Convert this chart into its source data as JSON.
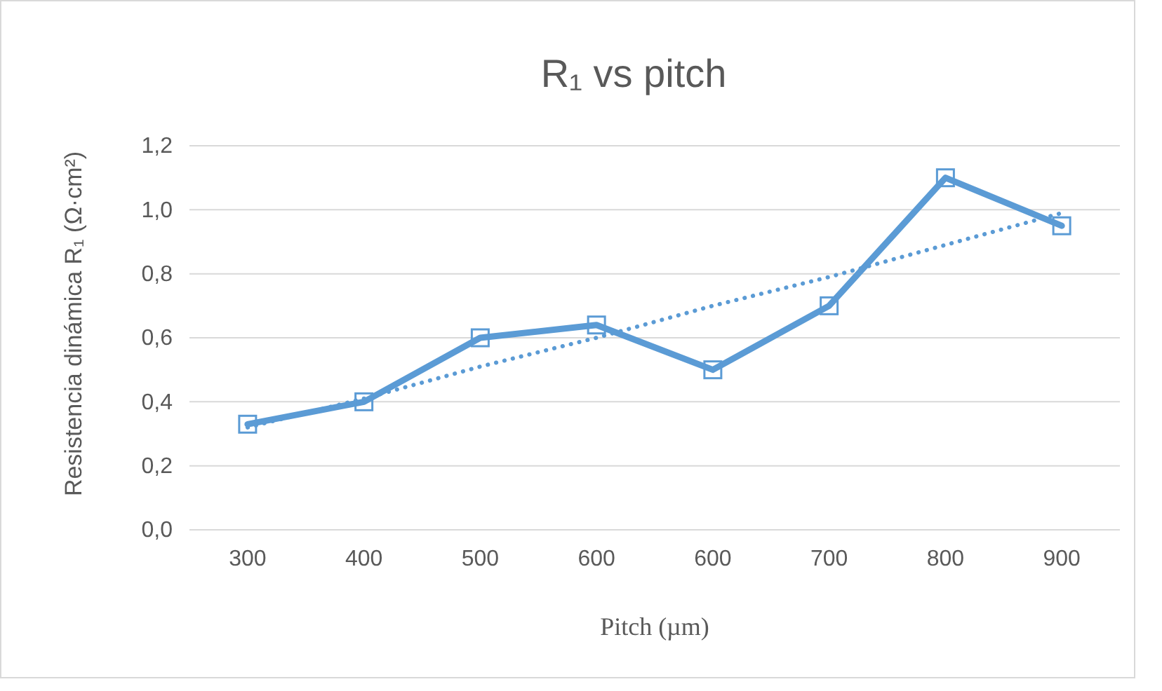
{
  "chart_data": {
    "type": "line",
    "title": "R₁ vs pitch",
    "xlabel": "Pitch (µm)",
    "ylabel": "Resistencia dinámica  R₁ (Ω·cm²)",
    "categories": [
      "300",
      "400",
      "500",
      "600",
      "600",
      "700",
      "800",
      "900"
    ],
    "series": [
      {
        "color": "#5b9bd5",
        "marker": "square",
        "line_style": "solid",
        "values": [
          0.33,
          0.4,
          0.6,
          0.64,
          0.5,
          0.7,
          1.1,
          0.95
        ]
      },
      {
        "color": "#5b9bd5",
        "marker": "none",
        "line_style": "dotted",
        "values": [
          0.32,
          0.41,
          0.51,
          0.6,
          0.7,
          0.79,
          0.89,
          0.99
        ]
      }
    ],
    "ylim": [
      0,
      1.2
    ],
    "yticks": [
      {
        "value": 0,
        "label": "0,0"
      },
      {
        "value": 0.2,
        "label": "0,2"
      },
      {
        "value": 0.4,
        "label": "0,4"
      },
      {
        "value": 0.6,
        "label": "0,6"
      },
      {
        "value": 0.8,
        "label": "0,8"
      },
      {
        "value": 1,
        "label": "1,0"
      },
      {
        "value": 1.2,
        "label": "1,2"
      }
    ],
    "grid": "y"
  }
}
